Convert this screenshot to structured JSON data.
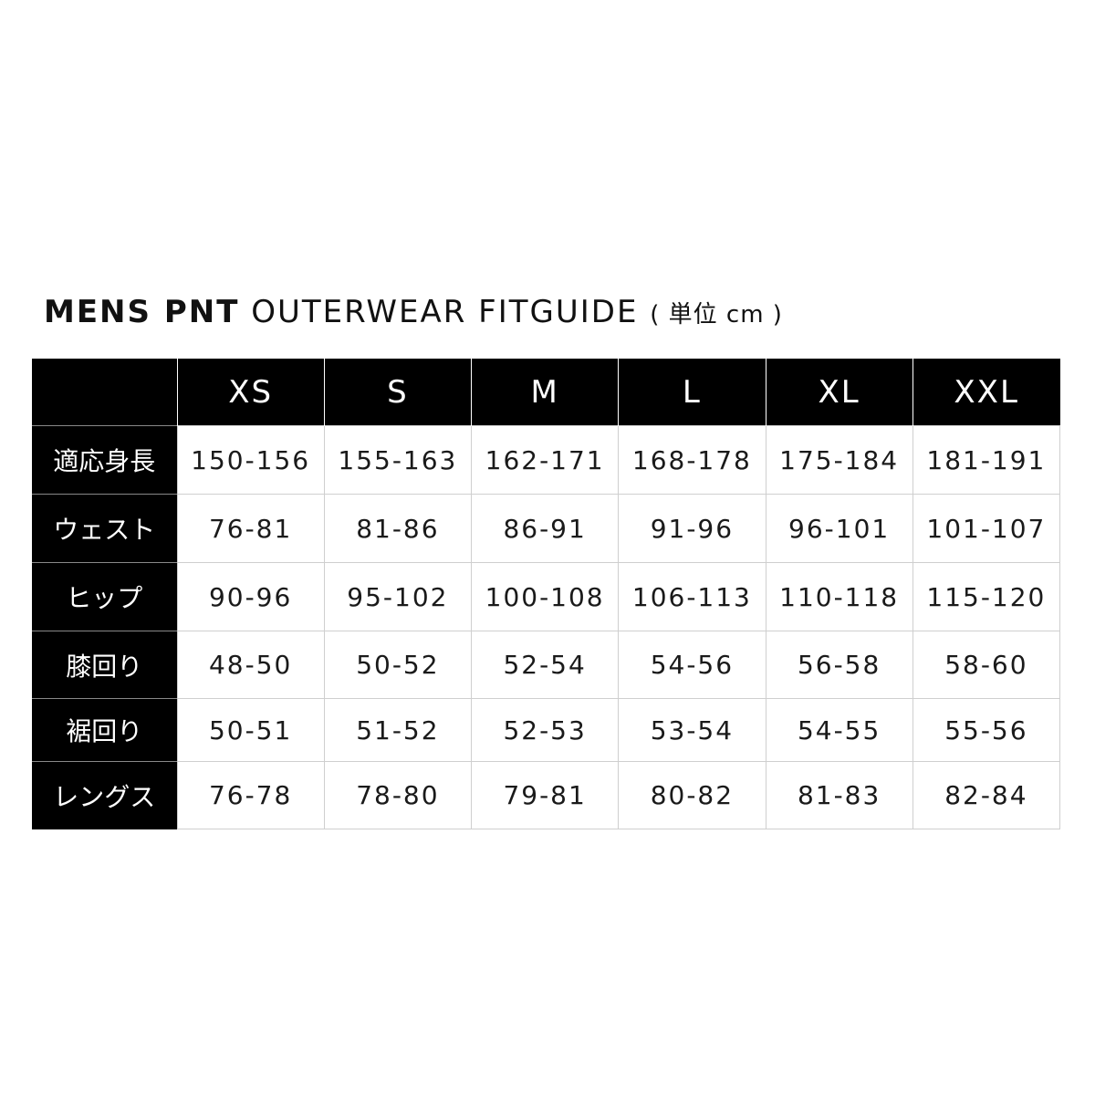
{
  "title": {
    "bold": "MENS PNT",
    "light": "OUTERWEAR FITGUIDE",
    "unit": "( 単位 cm )"
  },
  "table": {
    "corner": "",
    "sizes": [
      "XS",
      "S",
      "M",
      "L",
      "XL",
      "XXL"
    ],
    "rows": [
      {
        "label": "適応身長",
        "values": [
          "150-156",
          "155-163",
          "162-171",
          "168-178",
          "175-184",
          "181-191"
        ]
      },
      {
        "label": "ウェスト",
        "values": [
          "76-81",
          "81-86",
          "86-91",
          "91-96",
          "96-101",
          "101-107"
        ]
      },
      {
        "label": "ヒップ",
        "values": [
          "90-96",
          "95-102",
          "100-108",
          "106-113",
          "110-118",
          "115-120"
        ]
      },
      {
        "label": "膝回り",
        "values": [
          "48-50",
          "50-52",
          "52-54",
          "54-56",
          "56-58",
          "58-60"
        ]
      },
      {
        "label": "裾回り",
        "values": [
          "50-51",
          "51-52",
          "52-53",
          "53-54",
          "54-55",
          "55-56"
        ]
      },
      {
        "label": "レングス",
        "values": [
          "76-78",
          "78-80",
          "79-81",
          "80-82",
          "81-83",
          "82-84"
        ]
      }
    ]
  }
}
